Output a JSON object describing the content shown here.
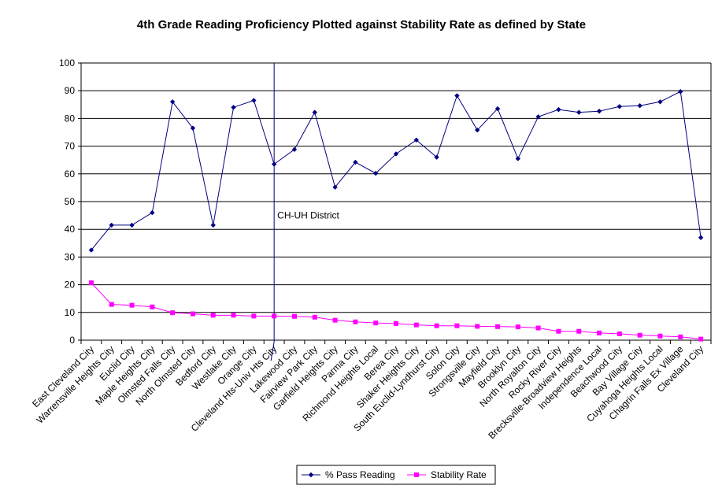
{
  "chart_data": {
    "type": "line",
    "title": "4th Grade Reading Proficiency Plotted against Stability Rate as defined by State",
    "categories": [
      "East Cleveland City",
      "Warrensville Heights City",
      "Euclid City",
      "Maple Heights City",
      "Olmsted Falls City",
      "North Olmsted City",
      "Bedford City",
      "Westlake City",
      "Orange City",
      "Cleveland Hts-Univ Hts City",
      "Lakewood City",
      "Fairview Park City",
      "Garfield Heights City",
      "Parma City",
      "Richmond Heights Local",
      "Berea City",
      "Shaker Heights City",
      "South Euclid-Lyndhurst City",
      "Solon City",
      "Strongsville City",
      "Mayfield City",
      "Brooklyn City",
      "North Royalton City",
      "Rocky River City",
      "Brecksville-Broadview Heights",
      "Independence Local",
      "Beachwood City",
      "Bay Village City",
      "Cuyahoga Heights Local",
      "Chagrin Falls Ex Village",
      "Cleveland City"
    ],
    "series": [
      {
        "name": "% Pass Reading",
        "color": "#000080",
        "marker": "diamond",
        "values": [
          32.5,
          41.5,
          41.5,
          46,
          86,
          76.5,
          41.5,
          84,
          86.5,
          63.5,
          68.8,
          82.2,
          55.2,
          64.2,
          60.2,
          67.2,
          72.2,
          66,
          88.2,
          75.8,
          83.5,
          65.5,
          80.6,
          83.2,
          82.2,
          82.6,
          84.3,
          84.6,
          86,
          89.7,
          37
        ]
      },
      {
        "name": "Stability Rate",
        "color": "#FF00FF",
        "marker": "square",
        "values": [
          20.7,
          12.9,
          12.6,
          12,
          9.9,
          9.5,
          9,
          9,
          8.7,
          8.7,
          8.6,
          8.3,
          7.2,
          6.6,
          6.2,
          6,
          5.5,
          5.2,
          5.2,
          5,
          4.9,
          4.8,
          4.4,
          3.2,
          3.2,
          2.6,
          2.3,
          1.8,
          1.5,
          1.2,
          0.4
        ]
      }
    ],
    "y_ticks": [
      "0",
      "10",
      "20",
      "30",
      "40",
      "50",
      "60",
      "70",
      "80",
      "90",
      "100"
    ],
    "ylim": [
      0,
      100
    ],
    "grid": "horizontal",
    "annotation": {
      "text": "CH-UH District",
      "category": "Cleveland Hts-Univ Hts City",
      "y": 45
    },
    "legend": {
      "position": "bottom-center",
      "entries": [
        "% Pass Reading",
        "Stability Rate"
      ]
    }
  }
}
